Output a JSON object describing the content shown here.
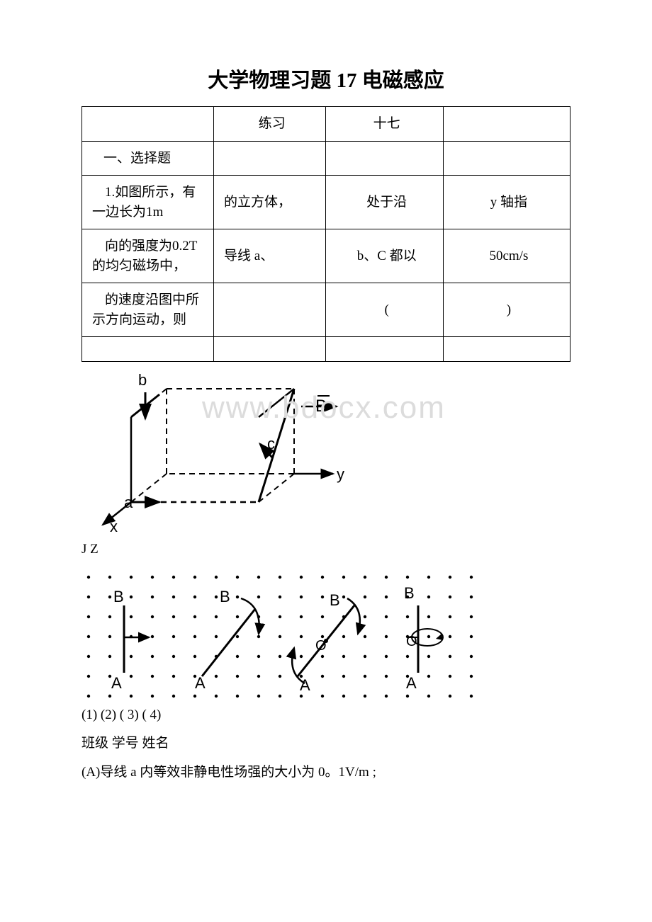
{
  "title": "大学物理习题 17 电磁感应",
  "table": {
    "rows": [
      [
        "",
        "练习",
        "十七",
        ""
      ],
      [
        "一、选择题",
        "",
        "",
        ""
      ],
      [
        "1.如图所示，有一边长为1m",
        "的立方体，",
        "处于沿",
        "y 轴指"
      ],
      [
        "向的强度为0.2T 的均匀磁场中，",
        "导线 a、",
        "b、C 都以",
        "50cm/s"
      ],
      [
        "的速度沿图中所示方向运动，则",
        "",
        "(",
        ")"
      ],
      [
        "",
        "",
        "",
        ""
      ]
    ]
  },
  "figure1": {
    "labels": {
      "a": "a",
      "b": "b",
      "c": "c",
      "x": "x",
      "y": "y",
      "B": "B"
    },
    "watermark": "www.bdocx.com",
    "stroke": "#000000",
    "dash": "6,5"
  },
  "caption1": "J Z",
  "figure2": {
    "labels": {
      "A": "A",
      "B": "B",
      "O": "O"
    },
    "dot_color": "#000000"
  },
  "caption2": "(1) (2) ( 3) ( 4)",
  "line_class": "班级 学号 姓名",
  "line_answer": "(A)导线 a 内等效非静电性场强的大小为 0。1V/m ;"
}
